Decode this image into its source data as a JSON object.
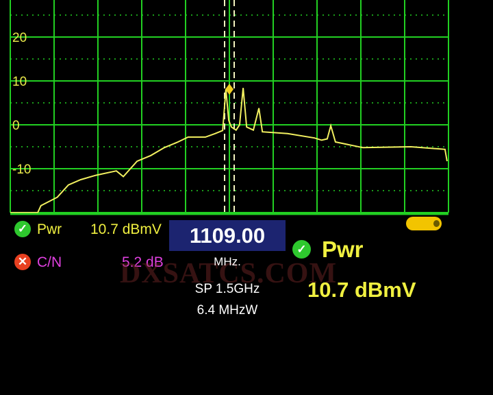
{
  "chart_data": {
    "type": "line",
    "title": "",
    "xlabel": "",
    "ylabel": "",
    "ylim": [
      -20,
      30
    ],
    "xlim": [
      359,
      1859
    ],
    "yticks": [
      "30",
      "20",
      "10",
      "0",
      "-10"
    ],
    "ytick_values": [
      30,
      20,
      10,
      0,
      -10
    ],
    "grid": true,
    "marker_frequency": 1109.0,
    "series": [
      {
        "color": "#f2f060",
        "points": [
          [
            359,
            -20
          ],
          [
            453,
            -20
          ],
          [
            464,
            -18.4
          ],
          [
            520,
            -16.5
          ],
          [
            558,
            -13.7
          ],
          [
            600,
            -12.5
          ],
          [
            652,
            -11.5
          ],
          [
            722,
            -10.5
          ],
          [
            746,
            -11.8
          ],
          [
            793,
            -8.3
          ],
          [
            840,
            -7
          ],
          [
            886,
            -5.2
          ],
          [
            930,
            -4
          ],
          [
            968,
            -2.8
          ],
          [
            1027,
            -2.8
          ],
          [
            1060,
            -2
          ],
          [
            1086,
            -1.3
          ],
          [
            1097,
            8.1
          ],
          [
            1107,
            1
          ],
          [
            1116,
            -0.5
          ],
          [
            1132,
            -1.2
          ],
          [
            1144,
            0
          ],
          [
            1156,
            8.4
          ],
          [
            1168,
            -0.5
          ],
          [
            1191,
            -1.2
          ],
          [
            1210,
            3.8
          ],
          [
            1222,
            -1.6
          ],
          [
            1308,
            -2
          ],
          [
            1400,
            -3
          ],
          [
            1425,
            -3.5
          ],
          [
            1444,
            -3.2
          ],
          [
            1456,
            -0.2
          ],
          [
            1472,
            -3.9
          ],
          [
            1566,
            -5.2
          ],
          [
            1730,
            -5
          ],
          [
            1847,
            -5.6
          ],
          [
            1854,
            -8.3
          ]
        ]
      }
    ]
  },
  "readouts": {
    "pwr_label": "Pwr",
    "pwr_value": "10.7 dBmV",
    "pwr_status": "ok",
    "cn_label": "C/N",
    "cn_value": "5.2 dB",
    "cn_status": "fail",
    "frequency": "1109.00",
    "frequency_unit": "MHz.",
    "span": "SP 1.5GHz",
    "bandwidth": "6.4 MHzW",
    "big_pwr_label": "Pwr",
    "big_pwr_value": "10.7 dBmV"
  },
  "icons": {
    "ok": "check-circle-icon",
    "fail": "x-circle-icon",
    "battery": "battery-icon"
  },
  "colors": {
    "grid": "#22d022",
    "trace": "#f2f060",
    "pwr": "#f0f040",
    "cn": "#e040e0",
    "ok": "#2ec82e",
    "fail": "#e84020",
    "freq_box": "#1c2470"
  },
  "watermark": "DXSATCS.COM"
}
